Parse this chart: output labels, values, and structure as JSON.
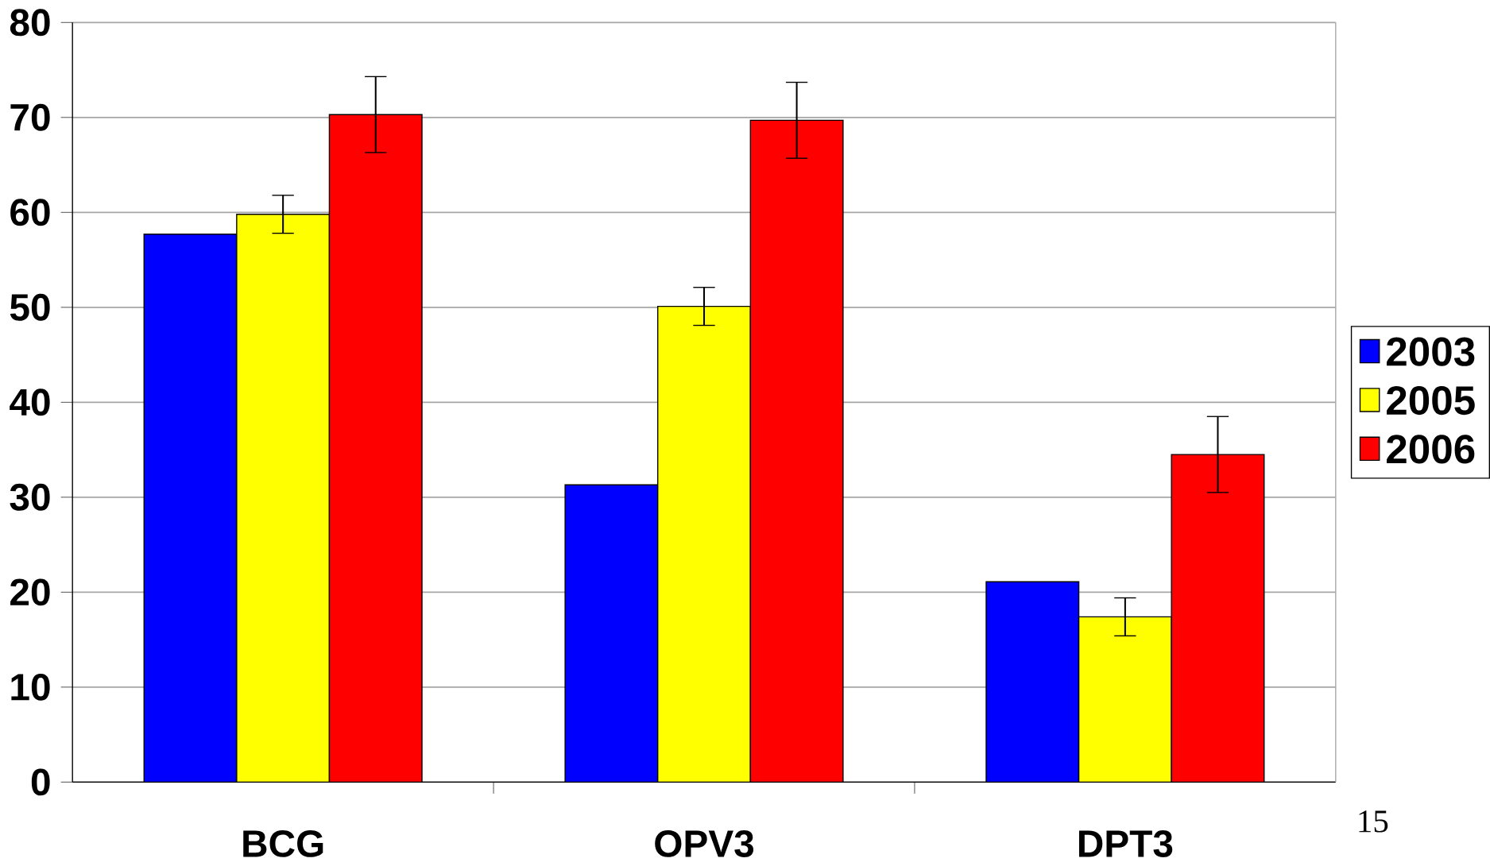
{
  "chart_data": {
    "type": "bar",
    "categories": [
      "BCG",
      "OPV3",
      "DPT3"
    ],
    "series": [
      {
        "name": "2003",
        "color": "#0000ff",
        "values": [
          57.7,
          31.3,
          21.1
        ]
      },
      {
        "name": "2005",
        "color": "#ffff00",
        "values": [
          59.8,
          50.1,
          17.4
        ],
        "errors": [
          2,
          2,
          2
        ]
      },
      {
        "name": "2006",
        "color": "#ff0000",
        "values": [
          70.3,
          69.7,
          34.5
        ],
        "errors": [
          4,
          4,
          4
        ]
      }
    ],
    "ylim": [
      0,
      80
    ],
    "yticks": [
      0,
      10,
      20,
      30,
      40,
      50,
      60,
      70,
      80
    ],
    "grid": "y",
    "legend": "right",
    "annotations": [
      "15"
    ]
  }
}
